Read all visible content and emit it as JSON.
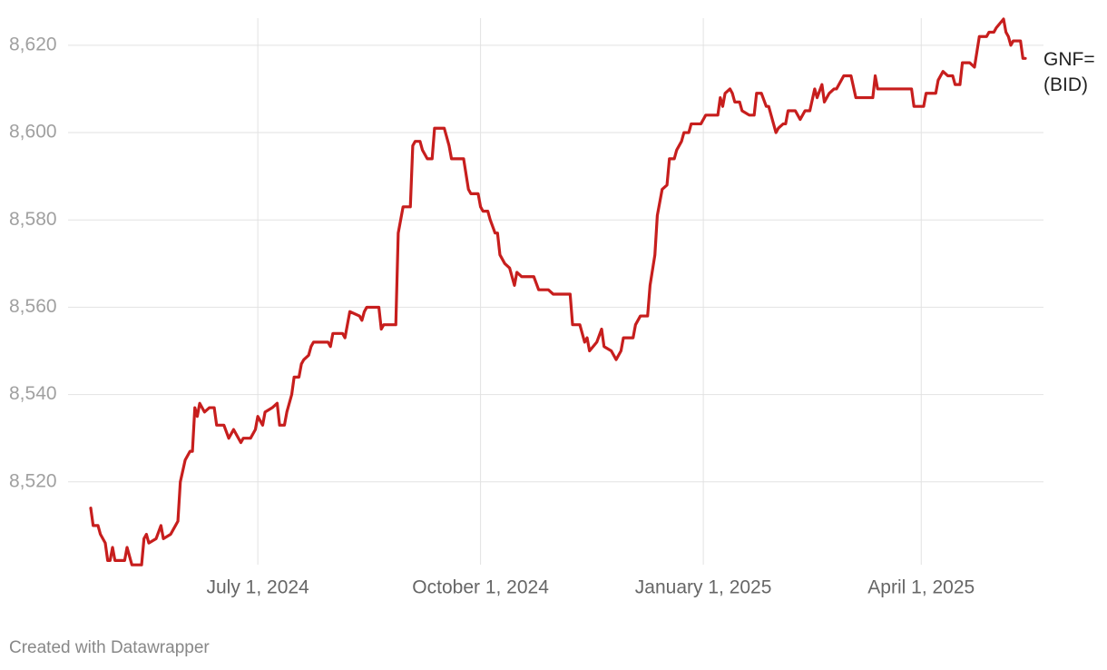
{
  "chart_data": {
    "type": "line",
    "source": "Created with Datawrapper",
    "x": [
      "2024-04-23",
      "2024-04-24",
      "2024-04-26",
      "2024-04-27",
      "2024-04-29",
      "2024-04-30",
      "2024-05-01",
      "2024-05-02",
      "2024-05-03",
      "2024-05-07",
      "2024-05-08",
      "2024-05-10",
      "2024-05-14",
      "2024-05-15",
      "2024-05-16",
      "2024-05-17",
      "2024-05-20",
      "2024-05-22",
      "2024-05-23",
      "2024-05-26",
      "2024-05-27",
      "2024-05-29",
      "2024-05-30",
      "2024-06-01",
      "2024-06-03",
      "2024-06-04",
      "2024-06-05",
      "2024-06-06",
      "2024-06-07",
      "2024-06-09",
      "2024-06-11",
      "2024-06-13",
      "2024-06-14",
      "2024-06-17",
      "2024-06-19",
      "2024-06-21",
      "2024-06-24",
      "2024-06-25",
      "2024-06-28",
      "2024-06-30",
      "2024-07-01",
      "2024-07-03",
      "2024-07-04",
      "2024-07-07",
      "2024-07-09",
      "2024-07-10",
      "2024-07-12",
      "2024-07-13",
      "2024-07-15",
      "2024-07-16",
      "2024-07-18",
      "2024-07-19",
      "2024-07-20",
      "2024-07-22",
      "2024-07-23",
      "2024-07-24",
      "2024-07-30",
      "2024-07-31",
      "2024-08-01",
      "2024-08-05",
      "2024-08-06",
      "2024-08-08",
      "2024-08-12",
      "2024-08-13",
      "2024-08-14",
      "2024-08-15",
      "2024-08-20",
      "2024-08-21",
      "2024-08-22",
      "2024-08-27",
      "2024-08-28",
      "2024-08-30",
      "2024-09-02",
      "2024-09-03",
      "2024-09-04",
      "2024-09-06",
      "2024-09-07",
      "2024-09-09",
      "2024-09-11",
      "2024-09-12",
      "2024-09-16",
      "2024-09-18",
      "2024-09-19",
      "2024-09-24",
      "2024-09-26",
      "2024-09-27",
      "2024-09-30",
      "2024-10-01",
      "2024-10-02",
      "2024-10-04",
      "2024-10-05",
      "2024-10-07",
      "2024-10-08",
      "2024-10-09",
      "2024-10-11",
      "2024-10-13",
      "2024-10-15",
      "2024-10-16",
      "2024-10-18",
      "2024-10-23",
      "2024-10-25",
      "2024-10-29",
      "2024-10-31",
      "2024-11-07",
      "2024-11-08",
      "2024-11-11",
      "2024-11-13",
      "2024-11-14",
      "2024-11-15",
      "2024-11-18",
      "2024-11-20",
      "2024-11-21",
      "2024-11-24",
      "2024-11-26",
      "2024-11-28",
      "2024-11-29",
      "2024-12-03",
      "2024-12-04",
      "2024-12-06",
      "2024-12-09",
      "2024-12-10",
      "2024-12-12",
      "2024-12-13",
      "2024-12-15",
      "2024-12-17",
      "2024-12-18",
      "2024-12-20",
      "2024-12-21",
      "2024-12-23",
      "2024-12-24",
      "2024-12-26",
      "2024-12-27",
      "2024-12-31",
      "2025-01-02",
      "2025-01-07",
      "2025-01-08",
      "2025-01-09",
      "2025-01-10",
      "2025-01-12",
      "2025-01-13",
      "2025-01-14",
      "2025-01-16",
      "2025-01-17",
      "2025-01-20",
      "2025-01-22",
      "2025-01-23",
      "2025-01-25",
      "2025-01-27",
      "2025-01-28",
      "2025-01-29",
      "2025-01-31",
      "2025-02-01",
      "2025-02-03",
      "2025-02-04",
      "2025-02-05",
      "2025-02-08",
      "2025-02-10",
      "2025-02-12",
      "2025-02-14",
      "2025-02-16",
      "2025-02-17",
      "2025-02-19",
      "2025-02-20",
      "2025-02-22",
      "2025-02-24",
      "2025-02-25",
      "2025-02-28",
      "2025-03-03",
      "2025-03-05",
      "2025-03-12",
      "2025-03-13",
      "2025-03-14",
      "2025-03-28",
      "2025-03-29",
      "2025-04-02",
      "2025-04-03",
      "2025-04-07",
      "2025-04-08",
      "2025-04-10",
      "2025-04-12",
      "2025-04-14",
      "2025-04-15",
      "2025-04-17",
      "2025-04-18",
      "2025-04-21",
      "2025-04-23",
      "2025-04-25",
      "2025-04-28",
      "2025-04-29",
      "2025-05-01",
      "2025-05-02",
      "2025-05-05",
      "2025-05-06",
      "2025-05-07",
      "2025-05-08",
      "2025-05-09",
      "2025-05-12",
      "2025-05-13",
      "2025-05-14"
    ],
    "series": [
      {
        "name": "GNF= (BID)",
        "color": "#c71e1d",
        "values": [
          8514,
          8510,
          8510,
          8508,
          8506,
          8502,
          8502,
          8505,
          8502,
          8502,
          8505,
          8501,
          8501,
          8507,
          8508,
          8506,
          8507,
          8510,
          8507,
          8508,
          8509,
          8511,
          8520,
          8525,
          8527,
          8527,
          8537,
          8535,
          8538,
          8536,
          8537,
          8537,
          8533,
          8533,
          8530,
          8532,
          8529,
          8530,
          8530,
          8532,
          8535,
          8533,
          8536,
          8537,
          8538,
          8533,
          8533,
          8536,
          8540,
          8544,
          8544,
          8547,
          8548,
          8549,
          8551,
          8552,
          8552,
          8551,
          8554,
          8554,
          8553,
          8559,
          8558,
          8557,
          8559,
          8560,
          8560,
          8555,
          8556,
          8556,
          8577,
          8583,
          8583,
          8597,
          8598,
          8598,
          8596,
          8594,
          8594,
          8601,
          8601,
          8597,
          8594,
          8594,
          8587,
          8586,
          8586,
          8583,
          8582,
          8582,
          8580,
          8577,
          8577,
          8572,
          8570,
          8569,
          8565,
          8568,
          8567,
          8567,
          8564,
          8564,
          8563,
          8563,
          8556,
          8556,
          8552,
          8553,
          8550,
          8552,
          8555,
          8551,
          8550,
          8548,
          8550,
          8553,
          8553,
          8556,
          8558,
          8558,
          8565,
          8572,
          8581,
          8587,
          8588,
          8594,
          8594,
          8596,
          8598,
          8600,
          8600,
          8602,
          8602,
          8604,
          8604,
          8608,
          8606,
          8609,
          8610,
          8609,
          8607,
          8607,
          8605,
          8604,
          8604,
          8609,
          8609,
          8606,
          8606,
          8604,
          8600,
          8601,
          8602,
          8602,
          8605,
          8605,
          8603,
          8605,
          8605,
          8610,
          8608,
          8611,
          8607,
          8609,
          8610,
          8610,
          8613,
          8613,
          8608,
          8608,
          8613,
          8610,
          8610,
          8606,
          8606,
          8609,
          8609,
          8612,
          8614,
          8613,
          8613,
          8611,
          8611,
          8616,
          8616,
          8615,
          8622,
          8622,
          8623,
          8623,
          8624,
          8626,
          8623,
          8622,
          8620,
          8621,
          8621,
          8617,
          8617
        ]
      }
    ],
    "xlim": [
      "2024-04-23",
      "2025-05-14"
    ],
    "xticks": [
      {
        "value": "2024-07-01",
        "label": "July 1, 2024"
      },
      {
        "value": "2024-10-01",
        "label": "October 1, 2024"
      },
      {
        "value": "2025-01-01",
        "label": "January 1, 2025"
      },
      {
        "value": "2025-04-01",
        "label": "April 1, 2025"
      }
    ],
    "ylim": [
      8500,
      8626
    ],
    "yticks": [
      {
        "value": 8520,
        "label": "8,520"
      },
      {
        "value": 8540,
        "label": "8,540"
      },
      {
        "value": 8560,
        "label": "8,560"
      },
      {
        "value": 8580,
        "label": "8,580"
      },
      {
        "value": 8600,
        "label": "8,600"
      },
      {
        "value": 8620,
        "label": "8,620"
      }
    ],
    "grid": true
  }
}
